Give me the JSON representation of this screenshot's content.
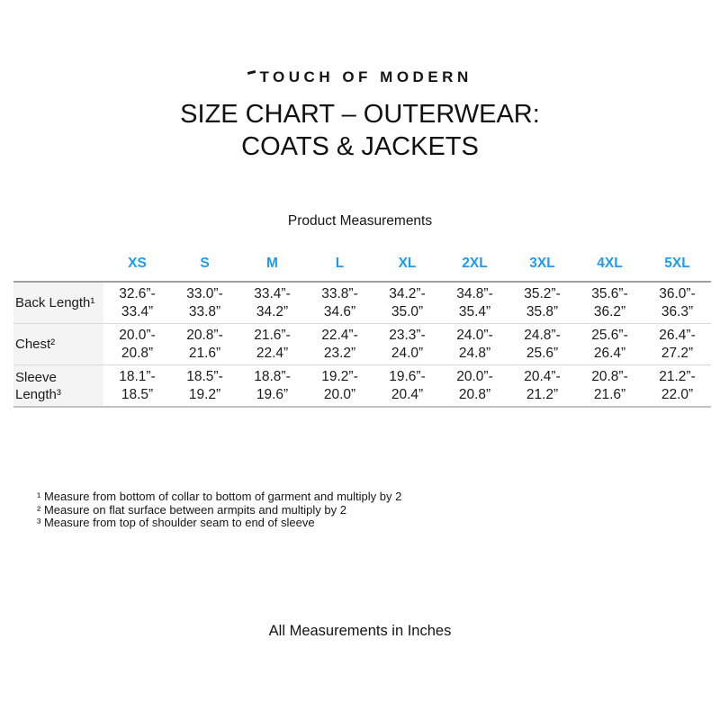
{
  "header": {
    "brand": "TOUCH OF MODERN",
    "title_line1": "SIZE CHART – OUTERWEAR:",
    "title_line2": "COATS & JACKETS"
  },
  "table": {
    "caption": "Product Measurements",
    "sizes": [
      "XS",
      "S",
      "M",
      "L",
      "XL",
      "2XL",
      "3XL",
      "4XL",
      "5XL"
    ],
    "rows": [
      {
        "label": "Back Length¹",
        "cells": [
          "32.6”-\n33.4”",
          "33.0”-\n33.8”",
          "33.4”-\n34.2”",
          "33.8”-\n34.6”",
          "34.2”-\n35.0”",
          "34.8”-\n35.4”",
          "35.2”-\n35.8”",
          "35.6”-\n36.2”",
          "36.0”-\n36.3”"
        ]
      },
      {
        "label": "Chest²",
        "cells": [
          "20.0”-\n20.8”",
          "20.8”-\n21.6”",
          "21.6”-\n22.4”",
          "22.4”-\n23.2”",
          "23.3”-\n24.0”",
          "24.0”-\n24.8”",
          "24.8”-\n25.6”",
          "25.6”-\n26.4”",
          "26.4”-\n27.2”"
        ]
      },
      {
        "label": "Sleeve Length³",
        "cells": [
          "18.1”-\n18.5”",
          "18.5”-\n19.2”",
          "18.8”-\n19.6”",
          "19.2”-\n20.0”",
          "19.6”-\n20.4”",
          "20.0”-\n20.8”",
          "20.4”-\n21.2”",
          "20.8”-\n21.6”",
          "21.2”-\n22.0”"
        ]
      }
    ]
  },
  "footnotes": [
    "¹ Measure from bottom of collar to bottom of garment and multiply by 2",
    "² Measure on flat surface between armpits and multiply by 2",
    "³ Measure from top of shoulder seam to end of sleeve"
  ],
  "footer": {
    "note": "All Measurements in Inches"
  },
  "colors": {
    "accent_blue": "#1E9BF0",
    "label_column_bg": "#f4f4f4"
  }
}
